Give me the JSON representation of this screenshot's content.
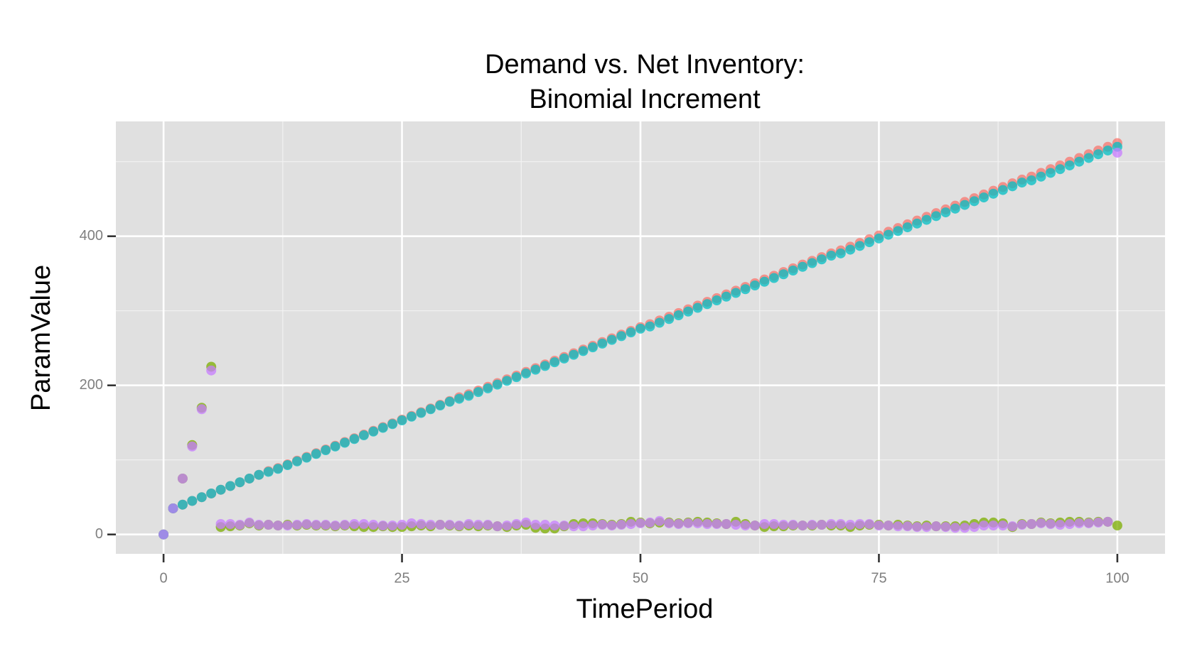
{
  "chart_data": {
    "type": "scatter",
    "title": [
      "Demand vs. Net Inventory:",
      "Binomial Increment"
    ],
    "x_label": "TimePeriod",
    "y_label": "ParamValue",
    "x": [
      0,
      1,
      2,
      3,
      4,
      5,
      6,
      7,
      8,
      9,
      10,
      11,
      12,
      13,
      14,
      15,
      16,
      17,
      18,
      19,
      20,
      21,
      22,
      23,
      24,
      25,
      26,
      27,
      28,
      29,
      30,
      31,
      32,
      33,
      34,
      35,
      36,
      37,
      38,
      39,
      40,
      41,
      42,
      43,
      44,
      45,
      46,
      47,
      48,
      49,
      50,
      51,
      52,
      53,
      54,
      55,
      56,
      57,
      58,
      59,
      60,
      61,
      62,
      63,
      64,
      65,
      66,
      67,
      68,
      69,
      70,
      71,
      72,
      73,
      74,
      75,
      76,
      77,
      78,
      79,
      80,
      81,
      82,
      83,
      84,
      85,
      86,
      87,
      88,
      89,
      90,
      91,
      92,
      93,
      94,
      95,
      96,
      97,
      98,
      99,
      100
    ],
    "series": [
      {
        "color": "#F8766D",
        "values": [
          0,
          35,
          40,
          45,
          50,
          55,
          60,
          65,
          70,
          75,
          80,
          85,
          89,
          94,
          99,
          104,
          109,
          114,
          119,
          124,
          129,
          134,
          139,
          144,
          149,
          154,
          159,
          164,
          169,
          174,
          179,
          184,
          188,
          193,
          198,
          203,
          208,
          213,
          218,
          223,
          228,
          233,
          238,
          243,
          248,
          253,
          258,
          263,
          268,
          273,
          278,
          282,
          287,
          292,
          297,
          302,
          307,
          312,
          317,
          322,
          327,
          332,
          337,
          342,
          347,
          352,
          357,
          362,
          367,
          372,
          377,
          381,
          386,
          391,
          396,
          401,
          406,
          411,
          416,
          421,
          426,
          431,
          436,
          441,
          446,
          451,
          456,
          461,
          466,
          471,
          476,
          480,
          485,
          490,
          495,
          500,
          505,
          510,
          515,
          520,
          525
        ]
      },
      {
        "color": "#7CAE00",
        "values": [
          0,
          35,
          75,
          120,
          170,
          225,
          10,
          11,
          12,
          15,
          12,
          13,
          12,
          13,
          12,
          13,
          12,
          12,
          11,
          12,
          11,
          10,
          10,
          11,
          10,
          10,
          11,
          12,
          11,
          13,
          12,
          11,
          12,
          11,
          12,
          11,
          10,
          12,
          13,
          9,
          8,
          8,
          11,
          14,
          15,
          15,
          14,
          13,
          14,
          17,
          16,
          15,
          16,
          16,
          15,
          16,
          17,
          16,
          15,
          14,
          17,
          14,
          12,
          10,
          11,
          11,
          12,
          12,
          12,
          13,
          12,
          12,
          10,
          12,
          13,
          13,
          12,
          13,
          12,
          11,
          12,
          11,
          11,
          11,
          12,
          14,
          16,
          16,
          15,
          10,
          14,
          14,
          16,
          15,
          16,
          17,
          17,
          16,
          17,
          17,
          12
        ]
      },
      {
        "color": "#00BFC4",
        "values": [
          0,
          35,
          40,
          45,
          50,
          55,
          60,
          65,
          70,
          75,
          80,
          84,
          88,
          93,
          98,
          103,
          108,
          113,
          118,
          123,
          128,
          133,
          138,
          143,
          148,
          153,
          158,
          163,
          168,
          173,
          178,
          182,
          186,
          191,
          196,
          201,
          206,
          211,
          216,
          221,
          226,
          231,
          236,
          241,
          246,
          251,
          256,
          261,
          266,
          271,
          276,
          279,
          284,
          289,
          294,
          299,
          304,
          309,
          314,
          319,
          324,
          329,
          334,
          339,
          344,
          349,
          354,
          359,
          364,
          369,
          374,
          377,
          382,
          387,
          392,
          397,
          402,
          407,
          412,
          417,
          422,
          427,
          432,
          437,
          442,
          447,
          452,
          457,
          462,
          467,
          472,
          475,
          480,
          485,
          490,
          495,
          500,
          505,
          510,
          515,
          520
        ]
      },
      {
        "color": "#C77CFF",
        "values": [
          0,
          35,
          75,
          118,
          168,
          220,
          14,
          14,
          13,
          16,
          13,
          13,
          12,
          12,
          13,
          14,
          13,
          13,
          12,
          13,
          14,
          14,
          13,
          12,
          12,
          13,
          15,
          14,
          13,
          13,
          13,
          12,
          14,
          13,
          13,
          11,
          12,
          14,
          16,
          13,
          13,
          12,
          12,
          11,
          11,
          12,
          13,
          12,
          13,
          14,
          15,
          16,
          18,
          15,
          14,
          15,
          15,
          14,
          14,
          14,
          13,
          12,
          12,
          14,
          14,
          13,
          13,
          12,
          13,
          13,
          14,
          14,
          13,
          14,
          14,
          12,
          12,
          11,
          11,
          10,
          10,
          11,
          10,
          9,
          9,
          10,
          12,
          12,
          12,
          11,
          13,
          14,
          15,
          14,
          13,
          14,
          15,
          15,
          16,
          17,
          512
        ]
      }
    ],
    "xlim": [
      -5,
      105
    ],
    "xticks": [
      0,
      25,
      50,
      75,
      100
    ],
    "xminor": [
      12.5,
      37.5,
      62.5,
      87.5
    ],
    "ylim": [
      -26,
      554
    ],
    "yticks": [
      0,
      200,
      400
    ],
    "yminor": [
      100,
      300,
      500
    ],
    "grid": true,
    "point_opacity": 0.75
  }
}
